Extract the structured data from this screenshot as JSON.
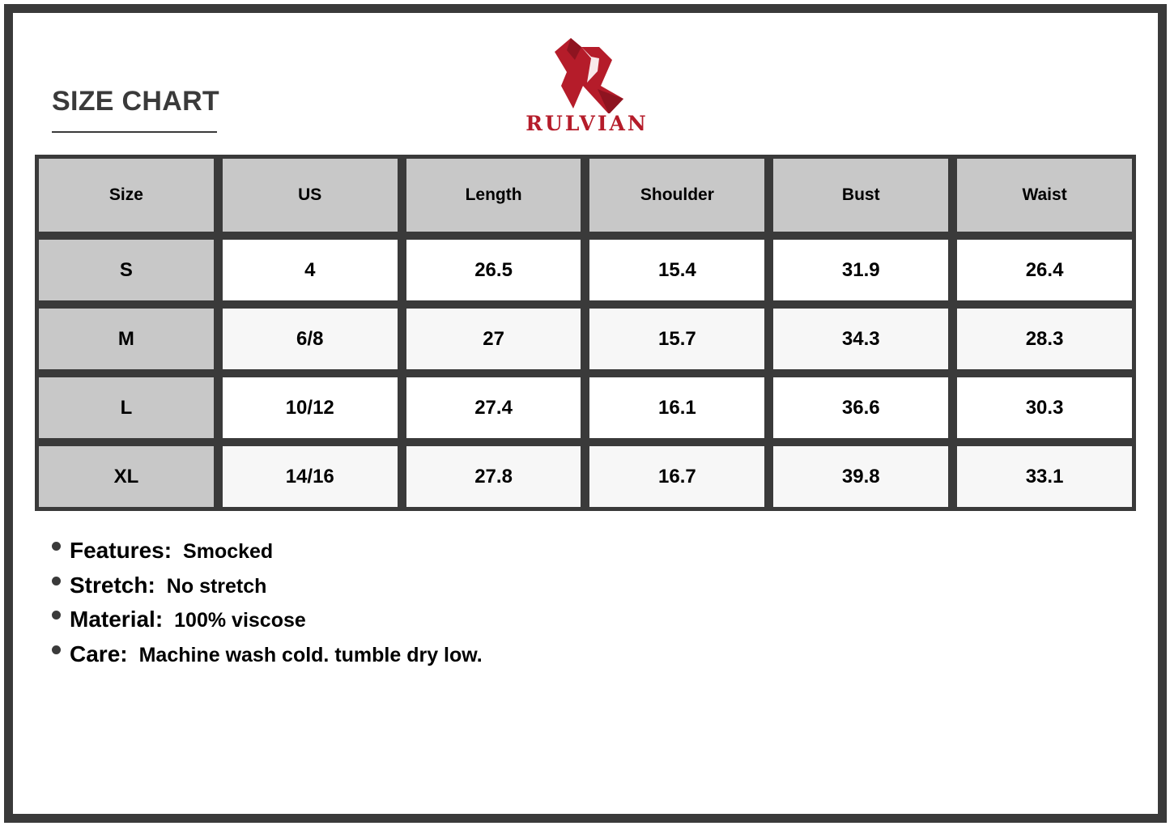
{
  "title": "SIZE CHART",
  "brand": {
    "name": "RULVIAN",
    "color": "#b51c2a",
    "logo": "R-monogram"
  },
  "table": {
    "headers": [
      "Size",
      "US",
      "Length",
      "Shoulder",
      "Bust",
      "Waist"
    ],
    "rows": [
      [
        "S",
        "4",
        "26.5",
        "15.4",
        "31.9",
        "26.4"
      ],
      [
        "M",
        "6/8",
        "27",
        "15.7",
        "34.3",
        "28.3"
      ],
      [
        "L",
        "10/12",
        "27.4",
        "16.1",
        "36.6",
        "30.3"
      ],
      [
        "XL",
        "14/16",
        "27.8",
        "16.7",
        "39.8",
        "33.1"
      ]
    ]
  },
  "details": [
    {
      "label": "Features:",
      "value": "Smocked"
    },
    {
      "label": "Stretch:",
      "value": "No stretch"
    },
    {
      "label": "Material:",
      "value": "100% viscose"
    },
    {
      "label": "Care:",
      "value": "Machine wash cold. tumble dry low."
    }
  ]
}
